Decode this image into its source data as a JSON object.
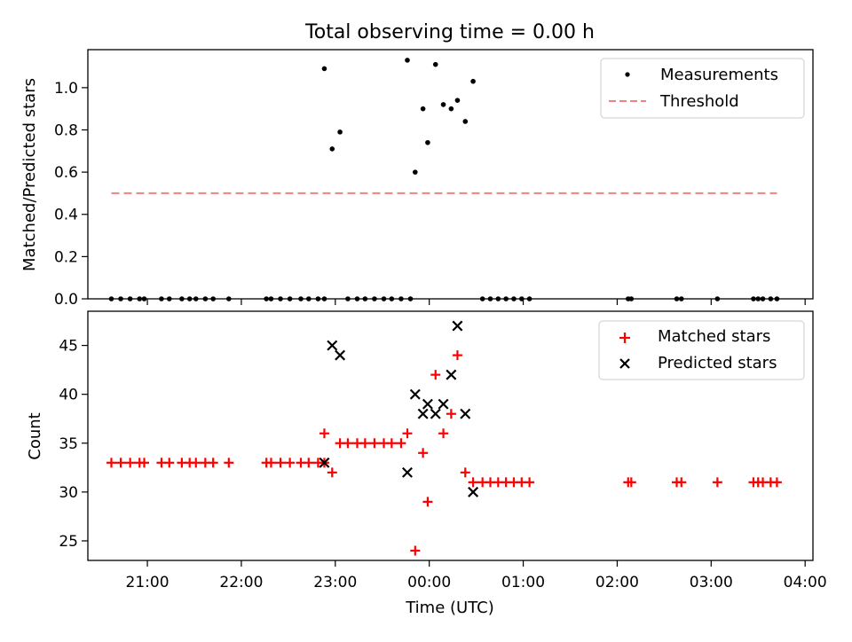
{
  "figure": {
    "title": "Total observing time = 0.00 h"
  },
  "chart_data": [
    {
      "type": "scatter",
      "ylabel": "Matched/Predicted stars",
      "xlim": [
        "20:22",
        "04:05"
      ],
      "ylim": [
        0,
        1.18
      ],
      "xticks_shown": false,
      "yticks": [
        0.0,
        0.2,
        0.4,
        0.6,
        0.8,
        1.0
      ],
      "ytick_labels": [
        "0.0",
        "0.2",
        "0.4",
        "0.6",
        "0.8",
        "1.0"
      ],
      "legend": {
        "placement": "top-right",
        "entries": [
          "Measurements",
          "Threshold"
        ]
      },
      "series": [
        {
          "name": "Measurements",
          "style": "dot",
          "color": "#000000",
          "points": [
            [
              "20:37",
              0
            ],
            [
              "20:43",
              0
            ],
            [
              "20:49",
              0
            ],
            [
              "20:55",
              0
            ],
            [
              "20:58",
              0
            ],
            [
              "21:09",
              0
            ],
            [
              "21:14",
              0
            ],
            [
              "21:22",
              0
            ],
            [
              "21:27",
              0
            ],
            [
              "21:31",
              0
            ],
            [
              "21:37",
              0
            ],
            [
              "21:42",
              0
            ],
            [
              "21:52",
              0
            ],
            [
              "22:16",
              0
            ],
            [
              "22:19",
              0
            ],
            [
              "22:25",
              0
            ],
            [
              "22:31",
              0
            ],
            [
              "22:38",
              0
            ],
            [
              "22:43",
              0
            ],
            [
              "22:49",
              0
            ],
            [
              "22:53",
              0
            ],
            [
              "22:53",
              1.09
            ],
            [
              "22:58",
              0.71
            ],
            [
              "23:03",
              0.79
            ],
            [
              "23:08",
              0
            ],
            [
              "23:14",
              0
            ],
            [
              "23:19",
              0
            ],
            [
              "23:25",
              0
            ],
            [
              "23:31",
              0
            ],
            [
              "23:36",
              0
            ],
            [
              "23:42",
              0
            ],
            [
              "23:48",
              0
            ],
            [
              "23:46",
              1.13
            ],
            [
              "23:51",
              0.6
            ],
            [
              "23:56",
              0.9
            ],
            [
              "23:59",
              0.74
            ],
            [
              "00:04",
              1.11
            ],
            [
              "00:09",
              0.92
            ],
            [
              "00:14",
              0.9
            ],
            [
              "00:18",
              0.94
            ],
            [
              "00:23",
              0.84
            ],
            [
              "00:28",
              1.03
            ],
            [
              "00:34",
              0
            ],
            [
              "00:39",
              0
            ],
            [
              "00:44",
              0
            ],
            [
              "00:49",
              0
            ],
            [
              "00:54",
              0
            ],
            [
              "00:59",
              0
            ],
            [
              "01:04",
              0
            ],
            [
              "02:07",
              0
            ],
            [
              "02:09",
              0
            ],
            [
              "02:38",
              0
            ],
            [
              "02:41",
              0
            ],
            [
              "03:04",
              0
            ],
            [
              "03:27",
              0
            ],
            [
              "03:30",
              0
            ],
            [
              "03:33",
              0
            ],
            [
              "03:38",
              0
            ],
            [
              "03:42",
              0
            ]
          ]
        },
        {
          "name": "Threshold",
          "style": "dashed-line",
          "color": "#f28080",
          "points": [
            [
              "20:37",
              0.5
            ],
            [
              "03:42",
              0.5
            ]
          ]
        }
      ]
    },
    {
      "type": "scatter",
      "xlabel": "Time (UTC)",
      "ylabel": "Count",
      "xlim": [
        "20:22",
        "04:05"
      ],
      "ylim": [
        23,
        48.5
      ],
      "xticks": [
        "21:00",
        "22:00",
        "23:00",
        "00:00",
        "01:00",
        "02:00",
        "03:00",
        "04:00"
      ],
      "yticks": [
        25,
        30,
        35,
        40,
        45
      ],
      "ytick_labels": [
        "25",
        "30",
        "35",
        "40",
        "45"
      ],
      "legend": {
        "placement": "top-right",
        "entries": [
          "Matched stars",
          "Predicted stars"
        ]
      },
      "series": [
        {
          "name": "Matched stars",
          "marker": "plus",
          "color": "#ff0000",
          "points": [
            [
              "20:37",
              33
            ],
            [
              "20:43",
              33
            ],
            [
              "20:49",
              33
            ],
            [
              "20:55",
              33
            ],
            [
              "20:58",
              33
            ],
            [
              "21:09",
              33
            ],
            [
              "21:14",
              33
            ],
            [
              "21:22",
              33
            ],
            [
              "21:27",
              33
            ],
            [
              "21:31",
              33
            ],
            [
              "21:37",
              33
            ],
            [
              "21:42",
              33
            ],
            [
              "21:52",
              33
            ],
            [
              "22:16",
              33
            ],
            [
              "22:19",
              33
            ],
            [
              "22:25",
              33
            ],
            [
              "22:31",
              33
            ],
            [
              "22:38",
              33
            ],
            [
              "22:43",
              33
            ],
            [
              "22:49",
              33
            ],
            [
              "22:53",
              33
            ],
            [
              "22:53",
              36
            ],
            [
              "22:58",
              32
            ],
            [
              "23:03",
              35
            ],
            [
              "23:08",
              35
            ],
            [
              "23:14",
              35
            ],
            [
              "23:19",
              35
            ],
            [
              "23:25",
              35
            ],
            [
              "23:31",
              35
            ],
            [
              "23:36",
              35
            ],
            [
              "23:42",
              35
            ],
            [
              "23:46",
              36
            ],
            [
              "23:51",
              24
            ],
            [
              "23:56",
              34
            ],
            [
              "23:59",
              29
            ],
            [
              "00:04",
              42
            ],
            [
              "00:09",
              36
            ],
            [
              "00:14",
              38
            ],
            [
              "00:18",
              44
            ],
            [
              "00:23",
              32
            ],
            [
              "00:28",
              31
            ],
            [
              "00:34",
              31
            ],
            [
              "00:39",
              31
            ],
            [
              "00:44",
              31
            ],
            [
              "00:49",
              31
            ],
            [
              "00:54",
              31
            ],
            [
              "00:59",
              31
            ],
            [
              "01:04",
              31
            ],
            [
              "02:07",
              31
            ],
            [
              "02:09",
              31
            ],
            [
              "02:38",
              31
            ],
            [
              "02:41",
              31
            ],
            [
              "03:04",
              31
            ],
            [
              "03:27",
              31
            ],
            [
              "03:30",
              31
            ],
            [
              "03:33",
              31
            ],
            [
              "03:38",
              31
            ],
            [
              "03:42",
              31
            ]
          ]
        },
        {
          "name": "Predicted stars",
          "marker": "x",
          "color": "#000000",
          "points": [
            [
              "22:53",
              33
            ],
            [
              "22:58",
              45
            ],
            [
              "23:03",
              44
            ],
            [
              "23:46",
              32
            ],
            [
              "23:51",
              40
            ],
            [
              "23:56",
              38
            ],
            [
              "23:59",
              39
            ],
            [
              "00:04",
              38
            ],
            [
              "00:09",
              39
            ],
            [
              "00:14",
              42
            ],
            [
              "00:18",
              47
            ],
            [
              "00:23",
              38
            ],
            [
              "00:28",
              30
            ]
          ]
        }
      ]
    }
  ]
}
